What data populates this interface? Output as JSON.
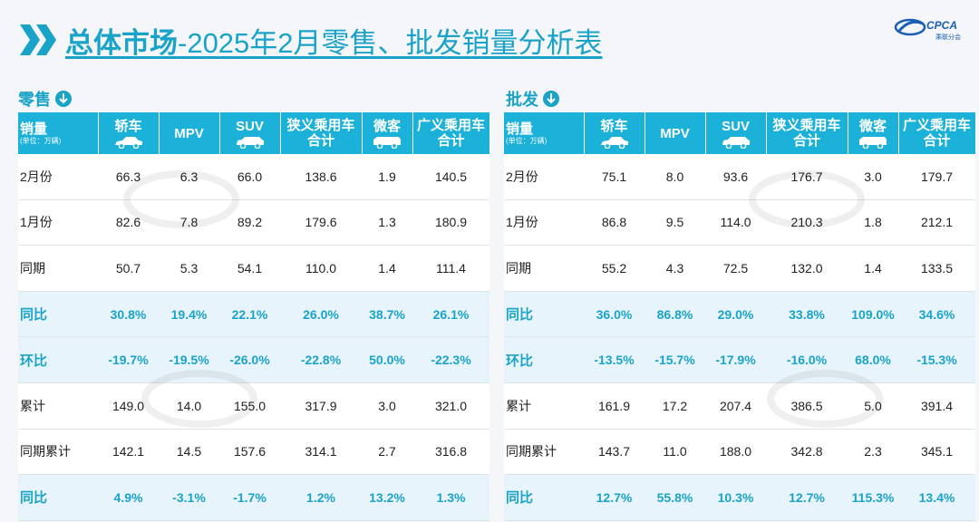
{
  "title": {
    "bold": "总体市场",
    "rest": "-2025年2月零售、批发销量分析表"
  },
  "logo": {
    "text": "CPCA",
    "sub": "乘联分会"
  },
  "columns": [
    "轿车",
    "MPV",
    "SUV",
    "狭义乘用车合计",
    "微客",
    "广义乘用车合计"
  ],
  "column_lines": [
    [
      "轿车"
    ],
    [
      "MPV"
    ],
    [
      "SUV"
    ],
    [
      "狭义乘用车",
      "合计"
    ],
    [
      "微客"
    ],
    [
      "广义乘用车",
      "合计"
    ]
  ],
  "header_label": "销量",
  "unit_label": "(单位：万辆)",
  "retail": {
    "label": "零售",
    "rows": [
      {
        "label": "2月份",
        "values": [
          "66.3",
          "6.3",
          "66.0",
          "138.6",
          "1.9",
          "140.5"
        ]
      },
      {
        "label": "1月份",
        "values": [
          "82.6",
          "7.8",
          "89.2",
          "179.6",
          "1.3",
          "180.9"
        ]
      },
      {
        "label": "同期",
        "values": [
          "50.7",
          "5.3",
          "54.1",
          "110.0",
          "1.4",
          "111.4"
        ]
      },
      {
        "label": "同比",
        "values": [
          "30.8%",
          "19.4%",
          "22.1%",
          "26.0%",
          "38.7%",
          "26.1%"
        ]
      },
      {
        "label": "环比",
        "values": [
          "-19.7%",
          "-19.5%",
          "-26.0%",
          "-22.8%",
          "50.0%",
          "-22.3%"
        ]
      },
      {
        "label": "累计",
        "values": [
          "149.0",
          "14.0",
          "155.0",
          "317.9",
          "3.0",
          "321.0"
        ]
      },
      {
        "label": "同期累计",
        "values": [
          "142.1",
          "14.5",
          "157.6",
          "314.1",
          "2.7",
          "316.8"
        ]
      },
      {
        "label": "同比",
        "values": [
          "4.9%",
          "-3.1%",
          "-1.7%",
          "1.2%",
          "13.2%",
          "1.3%"
        ]
      }
    ]
  },
  "wholesale": {
    "label": "批发",
    "rows": [
      {
        "label": "2月份",
        "values": [
          "75.1",
          "8.0",
          "93.6",
          "176.7",
          "3.0",
          "179.7"
        ]
      },
      {
        "label": "1月份",
        "values": [
          "86.8",
          "9.5",
          "114.0",
          "210.3",
          "1.8",
          "212.1"
        ]
      },
      {
        "label": "同期",
        "values": [
          "55.2",
          "4.3",
          "72.5",
          "132.0",
          "1.4",
          "133.5"
        ]
      },
      {
        "label": "同比",
        "values": [
          "36.0%",
          "86.8%",
          "29.0%",
          "33.8%",
          "109.0%",
          "34.6%"
        ]
      },
      {
        "label": "环比",
        "values": [
          "-13.5%",
          "-15.7%",
          "-17.9%",
          "-16.0%",
          "68.0%",
          "-15.3%"
        ]
      },
      {
        "label": "累计",
        "values": [
          "161.9",
          "17.2",
          "207.4",
          "386.5",
          "5.0",
          "391.4"
        ]
      },
      {
        "label": "同期累计",
        "values": [
          "143.7",
          "11.0",
          "188.0",
          "342.8",
          "2.3",
          "345.1"
        ]
      },
      {
        "label": "同比",
        "values": [
          "12.7%",
          "55.8%",
          "10.3%",
          "12.7%",
          "115.3%",
          "13.4%"
        ]
      }
    ]
  },
  "pct_rows": [
    3,
    4,
    7
  ],
  "header_icons": [
    "sedan-icon",
    "",
    "suv-icon",
    "",
    "van-icon",
    ""
  ]
}
